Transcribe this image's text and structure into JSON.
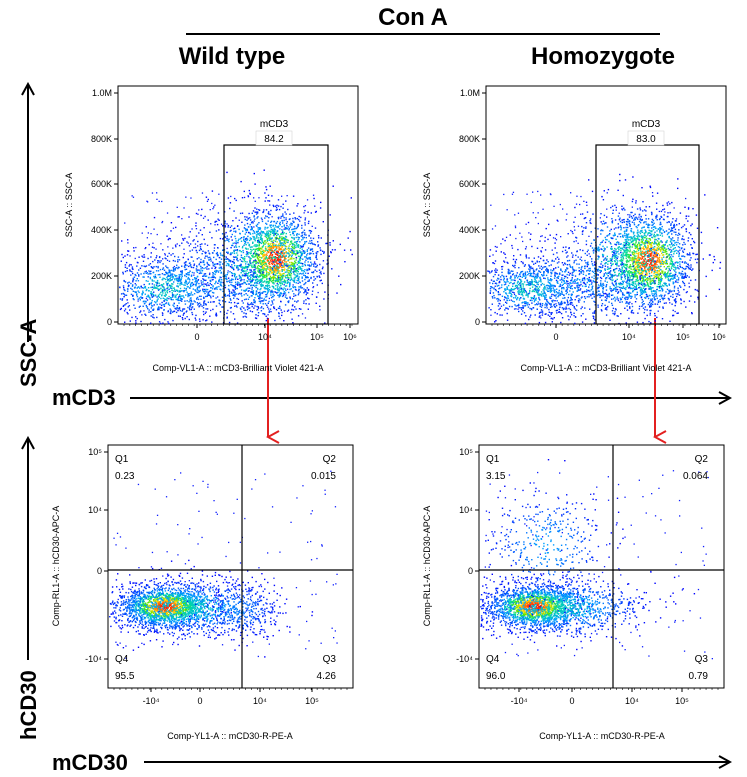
{
  "header": {
    "treatment": "Con A"
  },
  "columns": [
    "Wild type",
    "Homozygote"
  ],
  "axis_arrows": {
    "y_top": "SSC-A",
    "x_top": "mCD3",
    "y_bottom": "hCD30",
    "x_bottom": "mCD30"
  },
  "colors": {
    "arrow_red": "#e32020",
    "density_low": "#0000ff",
    "density_high": "#ff0000"
  },
  "chart_data": [
    {
      "type": "scatter",
      "panel": "Wild type mCD3 gate",
      "xlabel": "Comp-VL1-A :: mCD3-Brilliant Violet 421-A",
      "ylabel": "SSC-A :: SSC-A",
      "x_scale": "biexponential",
      "x_ticks": [
        "0",
        "10⁴",
        "10⁵",
        "10⁶"
      ],
      "y_ticks": [
        "0",
        "200K",
        "400K",
        "600K",
        "800K",
        "1.0M"
      ],
      "ylim": [
        0,
        1000000
      ],
      "gate": {
        "name": "mCD3",
        "percent": "84.2"
      }
    },
    {
      "type": "scatter",
      "panel": "Homozygote mCD3 gate",
      "xlabel": "Comp-VL1-A :: mCD3-Brilliant Violet 421-A",
      "ylabel": "SSC-A :: SSC-A",
      "x_scale": "biexponential",
      "x_ticks": [
        "0",
        "10⁴",
        "10⁵",
        "10⁶"
      ],
      "y_ticks": [
        "0",
        "200K",
        "400K",
        "600K",
        "800K",
        "1.0M"
      ],
      "ylim": [
        0,
        1000000
      ],
      "gate": {
        "name": "mCD3",
        "percent": "83.0"
      }
    },
    {
      "type": "scatter",
      "panel": "Wild type quadrants",
      "xlabel": "Comp-YL1-A :: mCD30-R-PE-A",
      "ylabel": "Comp-RL1-A :: hCD30-APC-A",
      "x_ticks": [
        "-10⁴",
        "0",
        "10⁴",
        "10⁵"
      ],
      "y_ticks": [
        "-10⁴",
        "0",
        "10⁴",
        "10⁵"
      ],
      "quadrants": [
        {
          "name": "Q1",
          "value": "0.23"
        },
        {
          "name": "Q2",
          "value": "0.015"
        },
        {
          "name": "Q3",
          "value": "4.26"
        },
        {
          "name": "Q4",
          "value": "95.5"
        }
      ]
    },
    {
      "type": "scatter",
      "panel": "Homozygote quadrants",
      "xlabel": "Comp-YL1-A :: mCD30-R-PE-A",
      "ylabel": "Comp-RL1-A :: hCD30-APC-A",
      "x_ticks": [
        "-10⁴",
        "0",
        "10⁴",
        "10⁵"
      ],
      "y_ticks": [
        "-10⁴",
        "0",
        "10⁴",
        "10⁵"
      ],
      "quadrants": [
        {
          "name": "Q1",
          "value": "3.15"
        },
        {
          "name": "Q2",
          "value": "0.064"
        },
        {
          "name": "Q3",
          "value": "0.79"
        },
        {
          "name": "Q4",
          "value": "96.0"
        }
      ]
    }
  ]
}
